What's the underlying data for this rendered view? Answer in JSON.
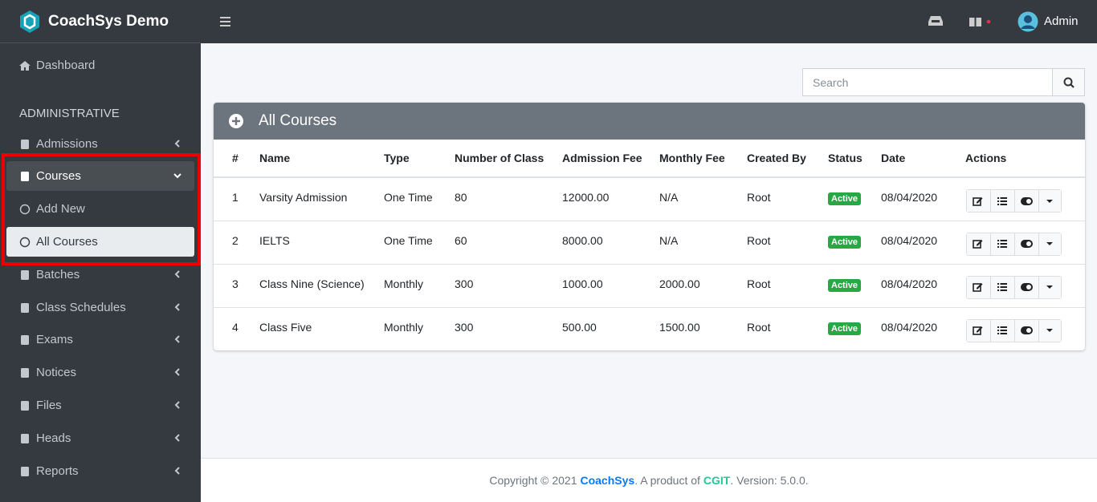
{
  "brand": "CoachSys Demo",
  "topbar": {
    "user": "Admin"
  },
  "sidebar": {
    "dashboard": "Dashboard",
    "section": "ADMINISTRATIVE",
    "menu": [
      {
        "label": "Admissions",
        "submenu": true
      },
      {
        "label": "Courses",
        "submenu": true,
        "open": true
      },
      {
        "label": "Add New",
        "child": true
      },
      {
        "label": "All Courses",
        "child": true,
        "active": true
      },
      {
        "label": "Batches",
        "submenu": true
      },
      {
        "label": "Class Schedules",
        "submenu": true
      },
      {
        "label": "Exams",
        "submenu": true
      },
      {
        "label": "Notices",
        "submenu": true
      },
      {
        "label": "Files",
        "submenu": true
      },
      {
        "label": "Heads",
        "submenu": true
      },
      {
        "label": "Reports",
        "submenu": true
      }
    ]
  },
  "search": {
    "placeholder": "Search"
  },
  "card": {
    "title": "All Courses"
  },
  "table": {
    "headers": [
      "#",
      "Name",
      "Type",
      "Number of Class",
      "Admission Fee",
      "Monthly Fee",
      "Created By",
      "Status",
      "Date",
      "Actions"
    ],
    "rows": [
      [
        "1",
        "Varsity Admission",
        "One Time",
        "80",
        "12000.00",
        "N/A",
        "Root",
        "Active",
        "08/04/2020"
      ],
      [
        "2",
        "IELTS",
        "One Time",
        "60",
        "8000.00",
        "N/A",
        "Root",
        "Active",
        "08/04/2020"
      ],
      [
        "3",
        "Class Nine (Science)",
        "Monthly",
        "300",
        "1000.00",
        "2000.00",
        "Root",
        "Active",
        "08/04/2020"
      ],
      [
        "4",
        "Class Five",
        "Monthly",
        "300",
        "500.00",
        "1500.00",
        "Root",
        "Active",
        "08/04/2020"
      ]
    ]
  },
  "footer": {
    "prefix": "Copyright © 2021",
    "brand": "CoachSys",
    "middle": ". A product of",
    "company": "CGIT",
    "suffix": ". Version: 5.0.0."
  }
}
